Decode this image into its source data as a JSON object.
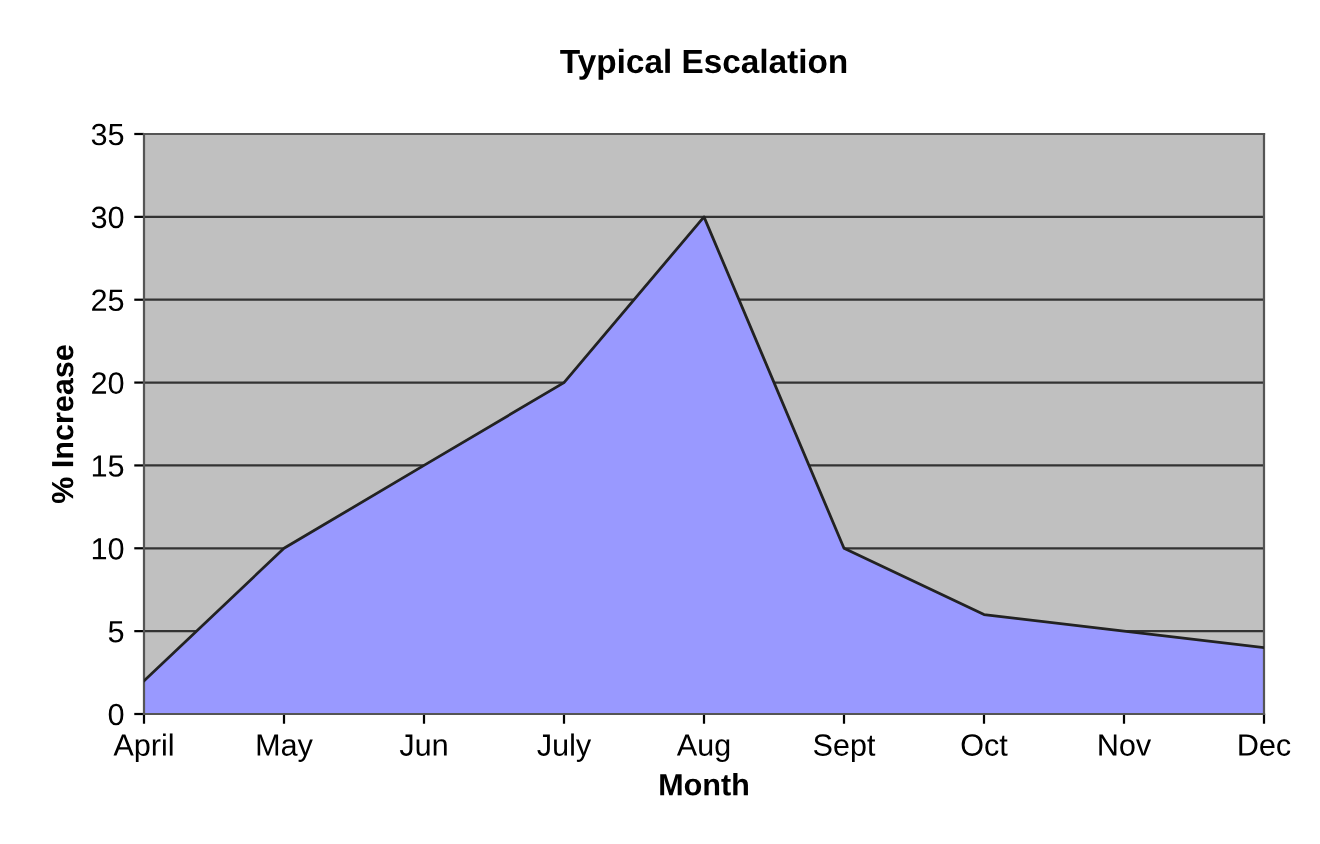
{
  "chart_data": {
    "type": "area",
    "title": "Typical Escalation",
    "xlabel": "Month",
    "ylabel": "% Increase",
    "categories": [
      "April",
      "May",
      "Jun",
      "July",
      "Aug",
      "Sept",
      "Oct",
      "Nov",
      "Dec"
    ],
    "series": [
      {
        "color": "#9999ff",
        "values": [
          2,
          10,
          15,
          20,
          30,
          10,
          6,
          5,
          4
        ]
      }
    ],
    "ylim": [
      0,
      35
    ],
    "yticks": [
      0,
      5,
      10,
      15,
      20,
      25,
      30,
      35
    ],
    "grid": "y",
    "legend": false
  }
}
